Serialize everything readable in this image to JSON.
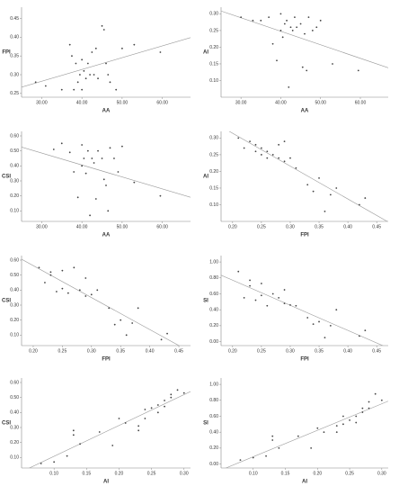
{
  "chart_data": [
    {
      "type": "scatter",
      "x_label": "AA",
      "y_label": "FPI",
      "color": "#444444",
      "x": [
        28.5,
        31,
        35,
        37,
        37.5,
        38,
        38.5,
        39,
        39.5,
        40,
        40,
        40.5,
        41,
        41.5,
        42,
        42.5,
        43,
        43.5,
        44,
        45,
        45.5,
        46,
        46.5,
        47,
        48.5,
        50,
        53,
        59.5
      ],
      "y": [
        0.28,
        0.27,
        0.26,
        0.38,
        0.35,
        0.26,
        0.33,
        0.28,
        0.3,
        0.34,
        0.26,
        0.31,
        0.29,
        0.33,
        0.3,
        0.36,
        0.3,
        0.37,
        0.29,
        0.43,
        0.42,
        0.33,
        0.3,
        0.28,
        0.26,
        0.37,
        0.38,
        0.36
      ],
      "xlim": [
        25,
        67
      ],
      "xticks": [
        {
          "value": 30,
          "label": "30.00"
        },
        {
          "value": 40,
          "label": "40.00"
        },
        {
          "value": 50,
          "label": "50.00"
        },
        {
          "value": 60,
          "label": "60.00"
        }
      ],
      "ylim": [
        0.24,
        0.48
      ],
      "yticks": [
        0.25,
        {
          "value": 0.3,
          "label": "0.30"
        },
        0.35,
        {
          "value": 0.4,
          "label": "0.40"
        },
        0.45
      ],
      "fit_line": true
    },
    {
      "type": "scatter",
      "x_label": "AA",
      "y_label": "AI",
      "color": "#444444",
      "x": [
        30,
        33,
        35,
        37,
        38,
        39,
        40,
        40,
        40.5,
        41,
        41.5,
        42,
        42.5,
        43,
        43.5,
        44,
        45,
        45.5,
        46,
        46.5,
        47,
        48,
        49,
        50,
        53,
        59.5
      ],
      "y": [
        0.29,
        0.28,
        0.28,
        0.29,
        0.21,
        0.16,
        0.3,
        0.25,
        0.23,
        0.27,
        0.28,
        0.08,
        0.26,
        0.25,
        0.29,
        0.26,
        0.27,
        0.14,
        0.24,
        0.13,
        0.29,
        0.25,
        0.26,
        0.28,
        0.15,
        0.13
      ],
      "xlim": [
        25,
        67
      ],
      "xticks": [
        {
          "value": 30,
          "label": "30.00"
        },
        {
          "value": 40,
          "label": "40.00"
        },
        {
          "value": 50,
          "label": "50.00"
        },
        {
          "value": 60,
          "label": "60.00"
        }
      ],
      "ylim": [
        0.05,
        0.32
      ],
      "yticks": [
        {
          "value": 0.1,
          "label": "0.10"
        },
        0.15,
        {
          "value": 0.2,
          "label": "0.20"
        },
        0.25,
        {
          "value": 0.3,
          "label": "0.30"
        }
      ],
      "fit_line": true
    },
    {
      "type": "scatter",
      "x_label": "AA",
      "y_label": "CSI",
      "color": "#444444",
      "x": [
        33,
        35,
        37,
        38,
        39,
        40,
        40,
        40.5,
        41,
        41.5,
        42,
        42.5,
        43,
        43.5,
        44,
        45,
        45.5,
        46,
        46.5,
        47,
        48,
        49,
        50,
        53,
        59.5
      ],
      "y": [
        0.51,
        0.55,
        0.49,
        0.36,
        0.19,
        0.54,
        0.4,
        0.45,
        0.35,
        0.5,
        0.07,
        0.45,
        0.42,
        0.18,
        0.5,
        0.45,
        0.31,
        0.27,
        0.1,
        0.52,
        0.45,
        0.36,
        0.53,
        0.29,
        0.2
      ],
      "xlim": [
        25,
        67
      ],
      "xticks": [
        {
          "value": 30,
          "label": "30.00"
        },
        {
          "value": 40,
          "label": "40.00"
        },
        {
          "value": 50,
          "label": "50.00"
        },
        {
          "value": 60,
          "label": "60.00"
        }
      ],
      "ylim": [
        0.03,
        0.63
      ],
      "yticks": [
        {
          "value": 0.1,
          "label": "0.10"
        },
        {
          "value": 0.2,
          "label": "0.20"
        },
        {
          "value": 0.3,
          "label": "0.30"
        },
        {
          "value": 0.4,
          "label": "0.40"
        },
        {
          "value": 0.5,
          "label": "0.50"
        },
        {
          "value": 0.6,
          "label": "0.60"
        }
      ],
      "fit_line": true
    },
    {
      "type": "scatter",
      "x_label": "FPI",
      "y_label": "AI",
      "color": "#444444",
      "x": [
        0.21,
        0.22,
        0.23,
        0.24,
        0.24,
        0.25,
        0.25,
        0.26,
        0.26,
        0.27,
        0.28,
        0.28,
        0.29,
        0.29,
        0.3,
        0.31,
        0.33,
        0.34,
        0.35,
        0.36,
        0.37,
        0.38,
        0.42,
        0.43
      ],
      "y": [
        0.3,
        0.27,
        0.29,
        0.28,
        0.26,
        0.27,
        0.25,
        0.26,
        0.24,
        0.25,
        0.28,
        0.24,
        0.29,
        0.23,
        0.24,
        0.21,
        0.16,
        0.14,
        0.18,
        0.08,
        0.13,
        0.15,
        0.1,
        0.12
      ],
      "xlim": [
        0.18,
        0.47
      ],
      "xticks": [
        {
          "value": 0.2,
          "label": "0.20"
        },
        0.25,
        {
          "value": 0.3,
          "label": "0.30"
        },
        0.35,
        {
          "value": 0.4,
          "label": "0.40"
        },
        0.45
      ],
      "ylim": [
        0.05,
        0.32
      ],
      "yticks": [
        {
          "value": 0.1,
          "label": "0.10"
        },
        0.15,
        {
          "value": 0.2,
          "label": "0.20"
        },
        0.25,
        {
          "value": 0.3,
          "label": "0.30"
        }
      ],
      "fit_line": true
    },
    {
      "type": "scatter",
      "x_label": "FPI",
      "y_label": "CSI",
      "color": "#444444",
      "x": [
        0.21,
        0.22,
        0.23,
        0.23,
        0.24,
        0.25,
        0.25,
        0.26,
        0.27,
        0.28,
        0.29,
        0.29,
        0.3,
        0.31,
        0.33,
        0.34,
        0.35,
        0.36,
        0.37,
        0.38,
        0.42,
        0.43
      ],
      "y": [
        0.55,
        0.45,
        0.52,
        0.5,
        0.39,
        0.53,
        0.41,
        0.38,
        0.55,
        0.4,
        0.48,
        0.36,
        0.37,
        0.4,
        0.28,
        0.17,
        0.2,
        0.1,
        0.18,
        0.28,
        0.07,
        0.11
      ],
      "xlim": [
        0.18,
        0.47
      ],
      "xticks": [
        {
          "value": 0.2,
          "label": "0.20"
        },
        0.25,
        {
          "value": 0.3,
          "label": "0.30"
        },
        0.35,
        {
          "value": 0.4,
          "label": "0.40"
        },
        0.45
      ],
      "ylim": [
        0.03,
        0.63
      ],
      "yticks": [
        {
          "value": 0.1,
          "label": "0.10"
        },
        {
          "value": 0.2,
          "label": "0.20"
        },
        {
          "value": 0.3,
          "label": "0.30"
        },
        {
          "value": 0.4,
          "label": "0.40"
        },
        {
          "value": 0.5,
          "label": "0.50"
        },
        {
          "value": 0.6,
          "label": "0.60"
        }
      ],
      "fit_line": true
    },
    {
      "type": "scatter",
      "x_label": "FPI",
      "y_label": "SI",
      "color": "#444444",
      "x": [
        0.21,
        0.22,
        0.23,
        0.23,
        0.24,
        0.25,
        0.25,
        0.26,
        0.27,
        0.28,
        0.29,
        0.29,
        0.3,
        0.31,
        0.33,
        0.34,
        0.35,
        0.36,
        0.37,
        0.38,
        0.42,
        0.43
      ],
      "y": [
        0.88,
        0.55,
        0.77,
        0.7,
        0.52,
        0.73,
        0.58,
        0.45,
        0.6,
        0.55,
        0.65,
        0.48,
        0.46,
        0.45,
        0.3,
        0.22,
        0.25,
        0.05,
        0.2,
        0.4,
        0.07,
        0.14
      ],
      "xlim": [
        0.18,
        0.47
      ],
      "xticks": [
        {
          "value": 0.2,
          "label": "0.20"
        },
        0.25,
        {
          "value": 0.3,
          "label": "0.30"
        },
        0.35,
        {
          "value": 0.4,
          "label": "0.40"
        },
        0.45
      ],
      "ylim": [
        -0.05,
        1.08
      ],
      "yticks": [
        {
          "value": 0,
          "label": "0.00"
        },
        {
          "value": 0.2,
          "label": "0.20"
        },
        {
          "value": 0.4,
          "label": "0.40"
        },
        {
          "value": 0.6,
          "label": "0.60"
        },
        {
          "value": 0.8,
          "label": "0.80"
        },
        {
          "value": 1,
          "label": "1.00"
        }
      ],
      "fit_line": true
    },
    {
      "type": "scatter",
      "x_label": "AI",
      "y_label": "CSI",
      "color": "#444444",
      "x": [
        0.08,
        0.1,
        0.12,
        0.13,
        0.13,
        0.14,
        0.17,
        0.19,
        0.2,
        0.21,
        0.23,
        0.23,
        0.24,
        0.24,
        0.25,
        0.26,
        0.26,
        0.27,
        0.27,
        0.28,
        0.28,
        0.29,
        0.3
      ],
      "y": [
        0.06,
        0.07,
        0.11,
        0.25,
        0.28,
        0.19,
        0.27,
        0.18,
        0.36,
        0.33,
        0.28,
        0.31,
        0.42,
        0.36,
        0.43,
        0.45,
        0.4,
        0.48,
        0.44,
        0.52,
        0.5,
        0.55,
        0.53
      ],
      "xlim": [
        0.05,
        0.31
      ],
      "xticks": [
        {
          "value": 0.1,
          "label": "0.10"
        },
        0.15,
        {
          "value": 0.2,
          "label": "0.20"
        },
        0.25,
        {
          "value": 0.3,
          "label": "0.30"
        }
      ],
      "ylim": [
        0.03,
        0.63
      ],
      "yticks": [
        {
          "value": 0.1,
          "label": "0.10"
        },
        {
          "value": 0.2,
          "label": "0.20"
        },
        {
          "value": 0.3,
          "label": "0.30"
        },
        {
          "value": 0.4,
          "label": "0.40"
        },
        {
          "value": 0.5,
          "label": "0.50"
        },
        {
          "value": 0.6,
          "label": "0.60"
        }
      ],
      "fit_line": true
    },
    {
      "type": "scatter",
      "x_label": "AI",
      "y_label": "SI",
      "color": "#444444",
      "x": [
        0.08,
        0.1,
        0.12,
        0.13,
        0.13,
        0.14,
        0.17,
        0.19,
        0.2,
        0.21,
        0.23,
        0.23,
        0.24,
        0.24,
        0.25,
        0.26,
        0.26,
        0.27,
        0.27,
        0.28,
        0.28,
        0.29,
        0.3
      ],
      "y": [
        0.05,
        0.08,
        0.1,
        0.3,
        0.35,
        0.2,
        0.35,
        0.2,
        0.45,
        0.4,
        0.4,
        0.48,
        0.6,
        0.5,
        0.55,
        0.6,
        0.52,
        0.7,
        0.65,
        0.78,
        0.7,
        0.88,
        0.8
      ],
      "xlim": [
        0.05,
        0.31
      ],
      "xticks": [
        {
          "value": 0.1,
          "label": "0.10"
        },
        0.15,
        {
          "value": 0.2,
          "label": "0.20"
        },
        0.25,
        {
          "value": 0.3,
          "label": "0.30"
        }
      ],
      "ylim": [
        -0.05,
        1.08
      ],
      "yticks": [
        {
          "value": 0,
          "label": "0.00"
        },
        {
          "value": 0.2,
          "label": "0.20"
        },
        {
          "value": 0.4,
          "label": "0.40"
        },
        {
          "value": 0.6,
          "label": "0.60"
        },
        {
          "value": 0.8,
          "label": "0.80"
        },
        {
          "value": 1,
          "label": "1.00"
        }
      ],
      "fit_line": true
    }
  ]
}
